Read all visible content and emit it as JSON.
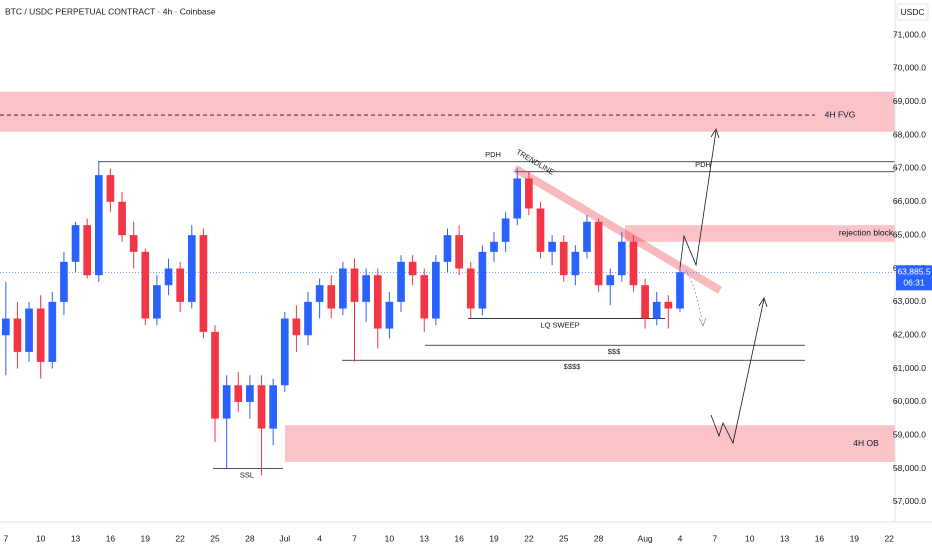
{
  "chart_data": {
    "type": "candlestick",
    "title": "BTC / USDC PERPETUAL CONTRACT · 4h · Coinbase",
    "currency": "USDC",
    "categories": [
      "7",
      null,
      null,
      "10",
      null,
      null,
      "13",
      null,
      null,
      "16",
      null,
      null,
      "19",
      null,
      null,
      "22",
      null,
      null,
      "25",
      null,
      null,
      "28",
      null,
      null,
      "Jul",
      null,
      null,
      "4",
      null,
      null,
      "7",
      null,
      null,
      "10",
      null,
      null,
      "13",
      null,
      null,
      "16",
      null,
      null,
      "19",
      null,
      null,
      "22",
      null,
      null,
      "25",
      null,
      null,
      "28",
      null,
      null,
      null,
      "Aug",
      null,
      null,
      "4",
      null,
      null,
      "7",
      null,
      null,
      "10",
      null,
      null,
      "13",
      null,
      null,
      "16",
      null,
      null,
      "19",
      null,
      null,
      "22"
    ],
    "open": [
      62000,
      62500,
      61500,
      62800,
      61200,
      63000,
      64200,
      65300,
      63800,
      66800,
      66000,
      65000,
      64500,
      62500,
      63500,
      64000,
      63000,
      65000,
      62100,
      59500,
      60500,
      60000,
      60500,
      59200,
      60500,
      62500,
      62000,
      63000,
      63500,
      62800,
      64000,
      63000,
      63800,
      62200,
      63000,
      64200,
      63800,
      62500,
      64200,
      65000,
      64000,
      62800,
      64500,
      64800,
      65500,
      66700,
      65800,
      64500,
      64800,
      63800,
      64500,
      65400,
      63500,
      63800,
      64800,
      63500,
      62500,
      63000,
      62800,
      null,
      null,
      null,
      null,
      null,
      null,
      null,
      null,
      null,
      null,
      null,
      null,
      null,
      null,
      null,
      null,
      null,
      null
    ],
    "high": [
      63600,
      63000,
      63000,
      63200,
      63300,
      64500,
      65400,
      65500,
      67200,
      67000,
      66300,
      65400,
      64600,
      63800,
      64300,
      64200,
      65300,
      65200,
      62300,
      60800,
      60900,
      60800,
      60800,
      60700,
      62700,
      62900,
      63300,
      63700,
      63800,
      64200,
      64300,
      64000,
      64000,
      63300,
      64400,
      64400,
      64000,
      64400,
      65200,
      65300,
      64200,
      64700,
      65100,
      65700,
      67000,
      66900,
      66000,
      65000,
      65000,
      64700,
      65600,
      65500,
      64000,
      65100,
      65000,
      63700,
      63300,
      63200,
      64000,
      null,
      null,
      null,
      null,
      null,
      null,
      null,
      null,
      null,
      null,
      null,
      null,
      null,
      null,
      null,
      null,
      null,
      null
    ],
    "low": [
      60800,
      61000,
      61200,
      60700,
      61000,
      62600,
      63900,
      63700,
      63600,
      65700,
      64800,
      64000,
      62300,
      62300,
      63200,
      62700,
      62800,
      61900,
      58800,
      58000,
      59700,
      59500,
      57800,
      58700,
      60300,
      61500,
      61700,
      62500,
      62500,
      62600,
      61200,
      62400,
      61600,
      61900,
      62700,
      63500,
      62100,
      62300,
      63900,
      63800,
      62500,
      62600,
      64200,
      64500,
      65300,
      65600,
      64300,
      64100,
      63600,
      63500,
      64300,
      63300,
      62900,
      63600,
      63300,
      62200,
      62300,
      62200,
      62700,
      null,
      null,
      null,
      null,
      null,
      null,
      null,
      null,
      null,
      null,
      null,
      null,
      null,
      null,
      null,
      null,
      null,
      null
    ],
    "close": [
      62500,
      61500,
      62800,
      61200,
      63000,
      64200,
      65300,
      63800,
      66800,
      66000,
      65000,
      64500,
      62500,
      63500,
      64000,
      63000,
      65000,
      62100,
      59500,
      60500,
      60000,
      60500,
      59200,
      60500,
      62500,
      62000,
      63000,
      63500,
      62800,
      64000,
      63000,
      63800,
      62200,
      63000,
      64200,
      63800,
      62500,
      64200,
      65000,
      64000,
      62800,
      64500,
      64800,
      65500,
      66700,
      65800,
      64500,
      64800,
      63800,
      64500,
      65400,
      63500,
      63800,
      64800,
      63500,
      62500,
      63000,
      62800,
      63885.5,
      null,
      null,
      null,
      null,
      null,
      null,
      null,
      null,
      null,
      null,
      null,
      null,
      null,
      null,
      null,
      null,
      null,
      null
    ],
    "up_color": "#2962ff",
    "down_color": "#f23645",
    "last_price": 63885.5,
    "last_price_label": "63,885.5",
    "countdown": "06:31",
    "ylim": [
      56460,
      72050
    ],
    "yticks": [
      {
        "value": 57000,
        "label": "57,000.0"
      },
      {
        "value": 58000,
        "label": "58,000.0"
      },
      {
        "value": 59000,
        "label": "59,000.0"
      },
      {
        "value": 60000,
        "label": "60,000.0"
      },
      {
        "value": 61000,
        "label": "61,000.0"
      },
      {
        "value": 62000,
        "label": "62,000.0"
      },
      {
        "value": 63000,
        "label": "63,000.0"
      },
      {
        "value": 64000,
        "label": "64,000.0"
      },
      {
        "value": 65000,
        "label": "65,000.0"
      },
      {
        "value": 66000,
        "label": "66,000.0"
      },
      {
        "value": 67000,
        "label": "67,000.0"
      },
      {
        "value": 68000,
        "label": "68,000.0"
      },
      {
        "value": 69000,
        "label": "69,000.0"
      },
      {
        "value": 70000,
        "label": "70,000.0"
      },
      {
        "value": 71000,
        "label": "71,000.0"
      }
    ],
    "zones": [
      {
        "label": "4H FVG",
        "low": 68100,
        "high": 69300,
        "line": 68600
      },
      {
        "label": "rejection block",
        "low": 64800,
        "high": 65300
      },
      {
        "label": "4H OB",
        "low": 58200,
        "high": 59300
      }
    ],
    "levels": [
      {
        "label": "PDH",
        "price": 67200
      },
      {
        "label": "PDH",
        "price": 66900
      },
      {
        "label": "LQ SWEEP",
        "price": 62500
      },
      {
        "label": "$$$",
        "price": 61700
      },
      {
        "label": "$$$$",
        "price": 61250
      },
      {
        "label": "SSL",
        "price": 58000
      }
    ],
    "trendline": {
      "label": "TRENDLINE",
      "start": 67000,
      "end": 63350
    }
  }
}
